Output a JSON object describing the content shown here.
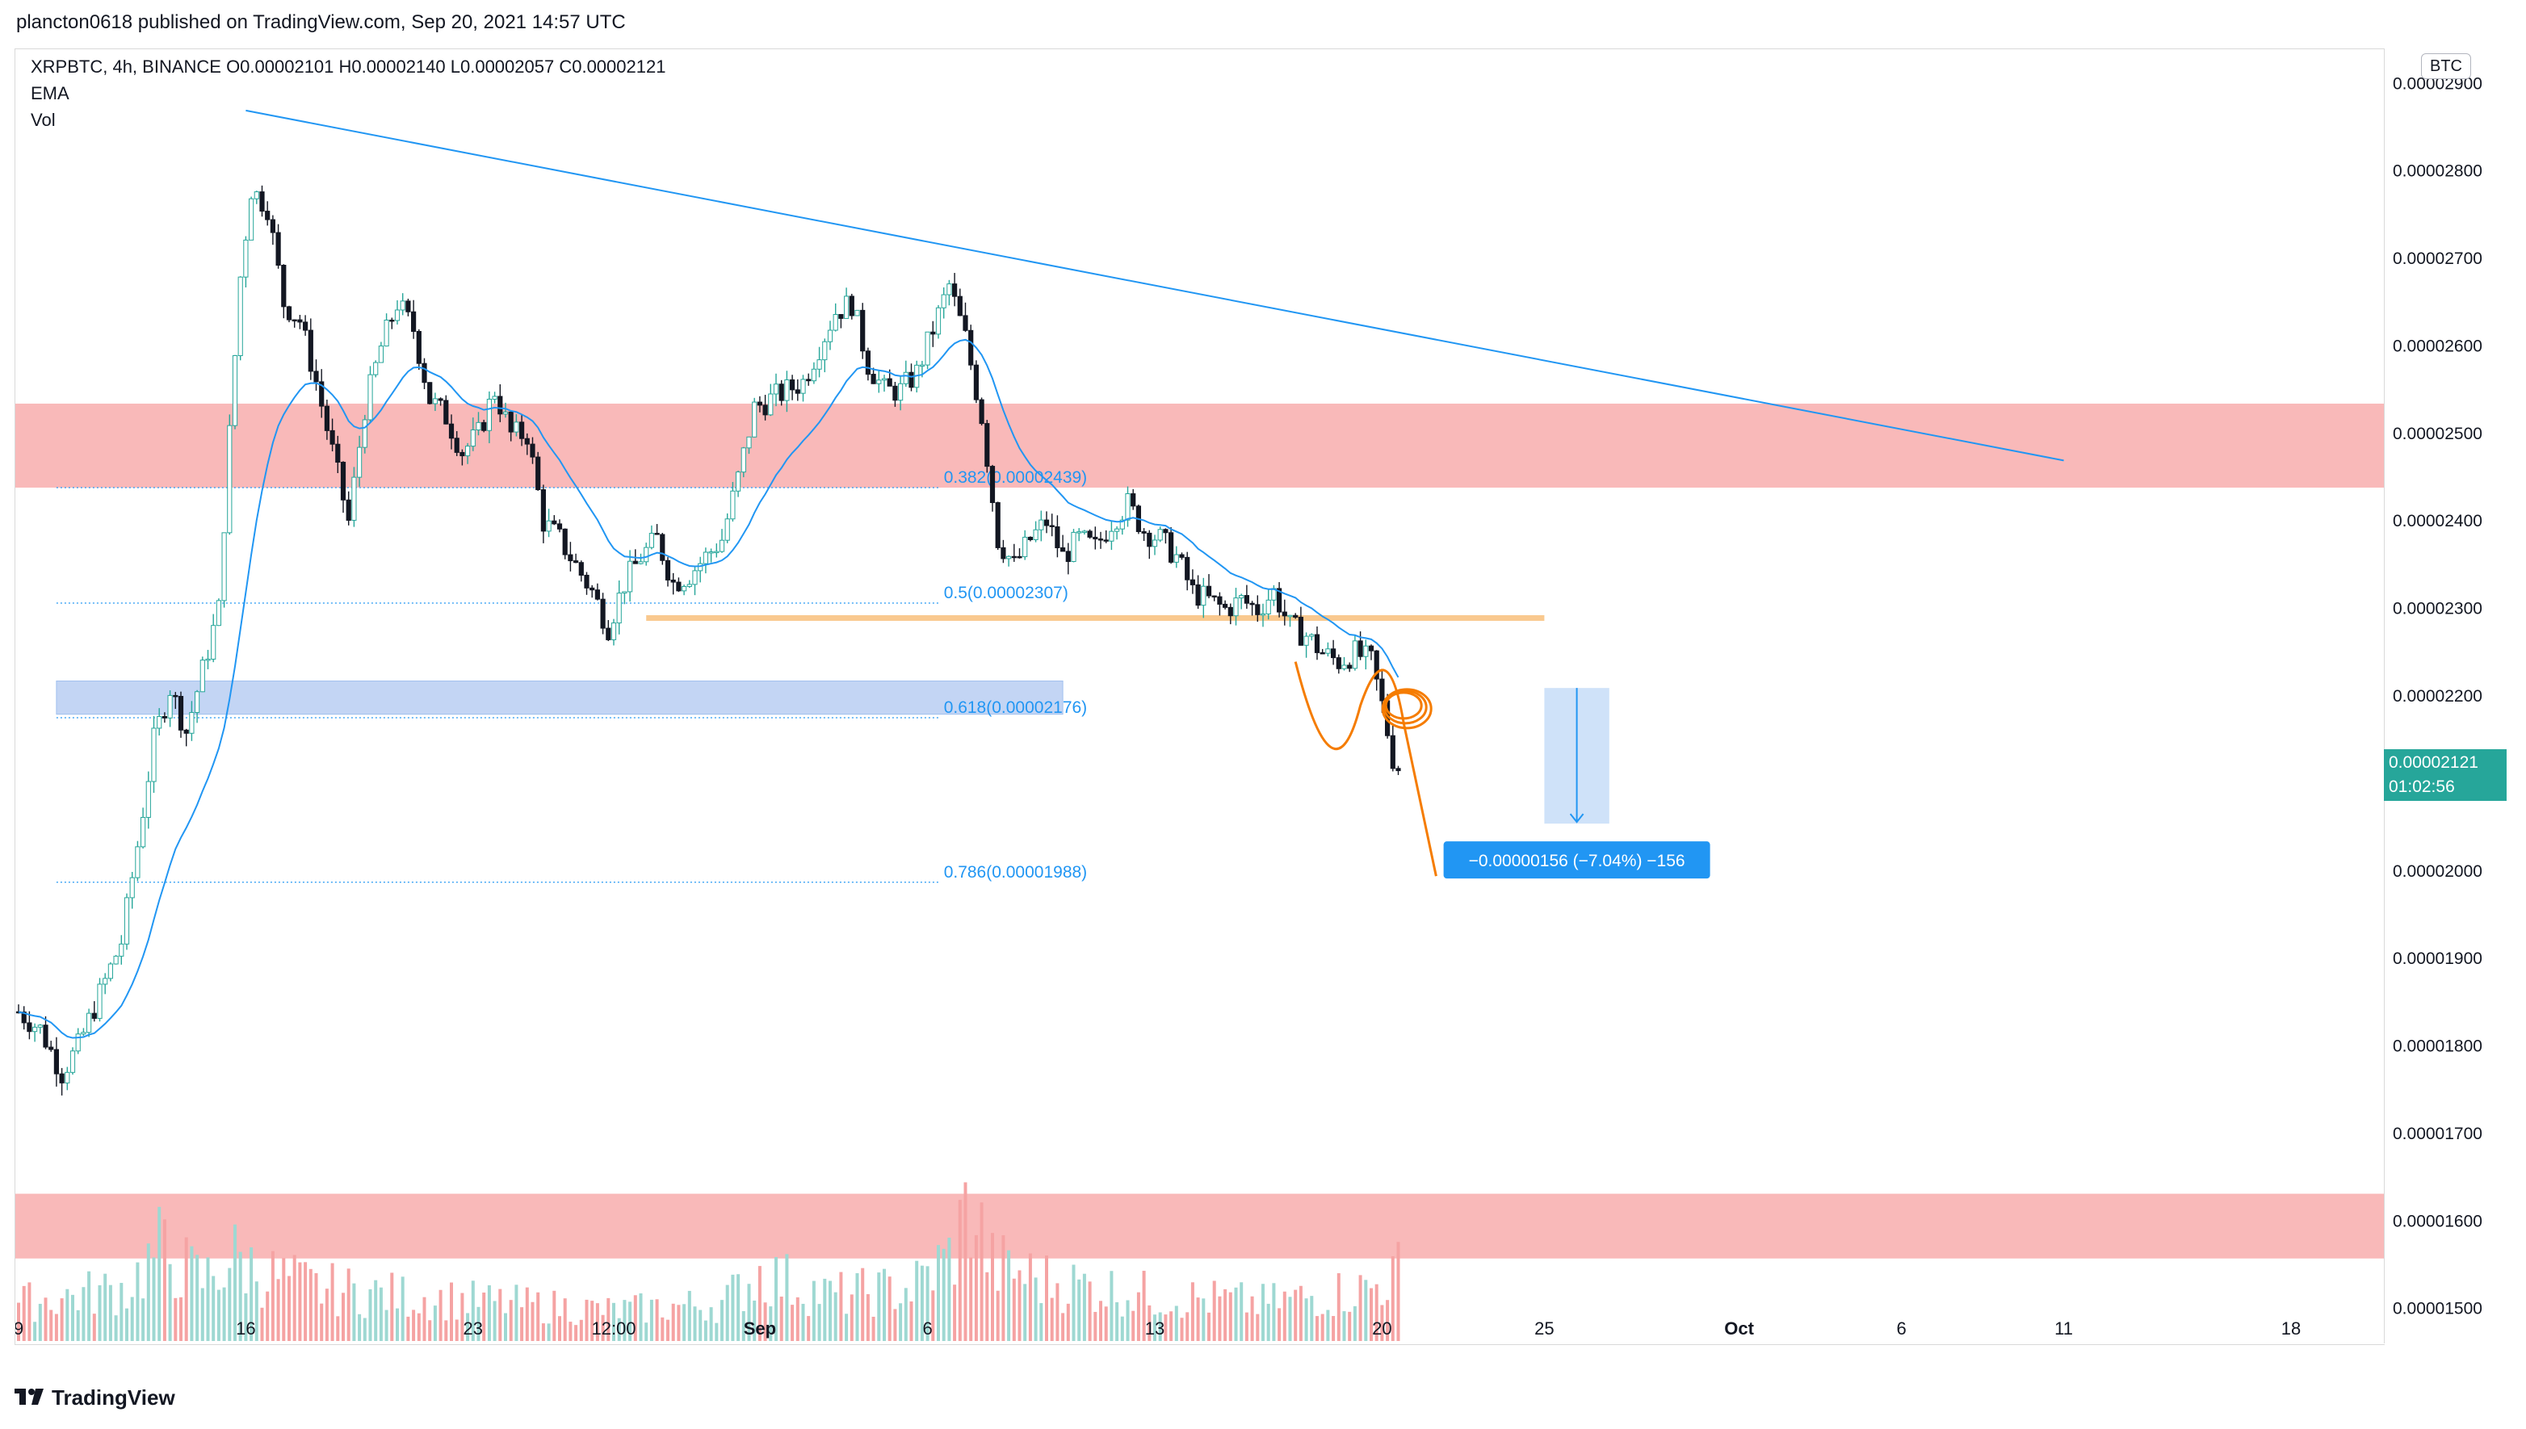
{
  "header": {
    "published_text": "plancton0618 published on TradingView.com, Sep 20, 2021 14:57 UTC"
  },
  "legend": {
    "symbol_line": "XRPBTC, 4h, BINANCE  O0.00002101  H0.00002140  L0.00002057  C0.00002121",
    "ema_label": "EMA",
    "vol_label": "Vol"
  },
  "axis": {
    "currency": "BTC",
    "last_price": "0.00002121",
    "countdown": "01:02:56"
  },
  "footer": {
    "brand": "TradingView"
  },
  "colors": {
    "up": "#26a69a",
    "down": "#131722",
    "ema": "#2196f3",
    "trendline": "#2196f3",
    "resistance_zone": "#f7a1a1",
    "support_zone": "#aac4f0",
    "fib_text": "#2196f3",
    "support_line": "#f9c98f",
    "drawing": "#f57c00",
    "measure_fill": "#bbd6f7",
    "measure_label": "#2196f3",
    "volume_up": "#9ed8d2",
    "volume_down": "#f5a3a3"
  },
  "chart_data": {
    "type": "candlestick",
    "symbol": "XRPBTC",
    "interval": "4h",
    "exchange": "BINANCE",
    "ylim": [
      1.46e-05,
      2.94e-05
    ],
    "y_ticks": [
      2.9e-05,
      2.8e-05,
      2.7e-05,
      2.6e-05,
      2.5e-05,
      2.4e-05,
      2.3e-05,
      2.2e-05,
      2.1e-05,
      2e-05,
      1.9e-05,
      1.8e-05,
      1.7e-05,
      1.6e-05,
      1.5e-05
    ],
    "y_tick_labels": [
      "0.00002900",
      "0.00002800",
      "0.00002700",
      "0.00002600",
      "0.00002500",
      "0.00002400",
      "0.00002300",
      "0.00002200",
      "0.00002100",
      "0.00002000",
      "0.00001900",
      "0.00001800",
      "0.00001700",
      "0.00001600",
      "0.00001500"
    ],
    "x_ticks": [
      {
        "label": "9",
        "bar": 0
      },
      {
        "label": "16",
        "bar": 42
      },
      {
        "label": "23",
        "bar": 84
      },
      {
        "label": "12:00",
        "bar": 110
      },
      {
        "label": "Sep",
        "bar": 137
      },
      {
        "label": "6",
        "bar": 168
      },
      {
        "label": "13",
        "bar": 210
      },
      {
        "label": "20",
        "bar": 252
      },
      {
        "label": "25",
        "bar": 282
      },
      {
        "label": "Oct",
        "bar": 318
      },
      {
        "label": "6",
        "bar": 348
      },
      {
        "label": "11",
        "bar": 378
      },
      {
        "label": "18",
        "bar": 420
      }
    ],
    "close_anchors": [
      [
        0,
        1.84e-05
      ],
      [
        4,
        1.82e-05
      ],
      [
        8,
        1.77e-05
      ],
      [
        11,
        1.8e-05
      ],
      [
        15,
        1.86e-05
      ],
      [
        19,
        1.92e-05
      ],
      [
        22,
        2.03e-05
      ],
      [
        25,
        2.15e-05
      ],
      [
        28,
        2.21e-05
      ],
      [
        31,
        2.16e-05
      ],
      [
        34,
        2.23e-05
      ],
      [
        37,
        2.3e-05
      ],
      [
        39,
        2.5e-05
      ],
      [
        41,
        2.68e-05
      ],
      [
        43,
        2.78e-05
      ],
      [
        46,
        2.76e-05
      ],
      [
        49,
        2.65e-05
      ],
      [
        52,
        2.63e-05
      ],
      [
        55,
        2.56e-05
      ],
      [
        58,
        2.48e-05
      ],
      [
        61,
        2.4e-05
      ],
      [
        64,
        2.53e-05
      ],
      [
        67,
        2.6e-05
      ],
      [
        70,
        2.65e-05
      ],
      [
        73,
        2.62e-05
      ],
      [
        76,
        2.54e-05
      ],
      [
        79,
        2.52e-05
      ],
      [
        82,
        2.48e-05
      ],
      [
        85,
        2.5e-05
      ],
      [
        88,
        2.55e-05
      ],
      [
        91,
        2.5e-05
      ],
      [
        94,
        2.5e-05
      ],
      [
        97,
        2.4e-05
      ],
      [
        100,
        2.38e-05
      ],
      [
        103,
        2.35e-05
      ],
      [
        106,
        2.32e-05
      ],
      [
        109,
        2.28e-05
      ],
      [
        112,
        2.33e-05
      ],
      [
        115,
        2.36e-05
      ],
      [
        118,
        2.38e-05
      ],
      [
        121,
        2.33e-05
      ],
      [
        124,
        2.34e-05
      ],
      [
        127,
        2.36e-05
      ],
      [
        130,
        2.38e-05
      ],
      [
        133,
        2.45e-05
      ],
      [
        136,
        2.53e-05
      ],
      [
        139,
        2.54e-05
      ],
      [
        142,
        2.55e-05
      ],
      [
        145,
        2.56e-05
      ],
      [
        148,
        2.6e-05
      ],
      [
        151,
        2.64e-05
      ],
      [
        154,
        2.65e-05
      ],
      [
        157,
        2.58e-05
      ],
      [
        160,
        2.55e-05
      ],
      [
        163,
        2.55e-05
      ],
      [
        166,
        2.57e-05
      ],
      [
        169,
        2.62e-05
      ],
      [
        172,
        2.67e-05
      ],
      [
        175,
        2.61e-05
      ],
      [
        178,
        2.52e-05
      ],
      [
        181,
        2.38e-05
      ],
      [
        184,
        2.35e-05
      ],
      [
        187,
        2.38e-05
      ],
      [
        190,
        2.4e-05
      ],
      [
        193,
        2.36e-05
      ],
      [
        196,
        2.38e-05
      ],
      [
        199,
        2.37e-05
      ],
      [
        202,
        2.4e-05
      ],
      [
        205,
        2.42e-05
      ],
      [
        208,
        2.39e-05
      ],
      [
        211,
        2.38e-05
      ],
      [
        214,
        2.36e-05
      ],
      [
        217,
        2.32e-05
      ],
      [
        220,
        2.31e-05
      ],
      [
        223,
        2.3e-05
      ],
      [
        226,
        2.31e-05
      ],
      [
        229,
        2.3e-05
      ],
      [
        232,
        2.32e-05
      ],
      [
        235,
        2.28e-05
      ],
      [
        238,
        2.27e-05
      ],
      [
        241,
        2.25e-05
      ],
      [
        244,
        2.24e-05
      ],
      [
        247,
        2.25e-05
      ],
      [
        250,
        2.24e-05
      ],
      [
        252,
        2.19e-05
      ],
      [
        254,
        2.13e-05
      ],
      [
        255,
        2.12e-05
      ]
    ],
    "volume_profile": [
      [
        0,
        0.25
      ],
      [
        20,
        0.35
      ],
      [
        26,
        0.6
      ],
      [
        30,
        0.5
      ],
      [
        34,
        0.4
      ],
      [
        40,
        0.55
      ],
      [
        45,
        0.45
      ],
      [
        55,
        0.35
      ],
      [
        70,
        0.3
      ],
      [
        90,
        0.25
      ],
      [
        110,
        0.2
      ],
      [
        130,
        0.25
      ],
      [
        137,
        0.45
      ],
      [
        150,
        0.3
      ],
      [
        165,
        0.35
      ],
      [
        172,
        0.55
      ],
      [
        176,
        0.9
      ],
      [
        180,
        0.5
      ],
      [
        190,
        0.4
      ],
      [
        210,
        0.3
      ],
      [
        230,
        0.25
      ],
      [
        250,
        0.35
      ],
      [
        255,
        0.45
      ]
    ],
    "series": [
      {
        "name": "EMA"
      },
      {
        "name": "Vol"
      }
    ],
    "ohlc_last": {
      "open": 2.101e-05,
      "high": 2.14e-05,
      "low": 2.057e-05,
      "close": 2.121e-05
    },
    "zones": [
      {
        "kind": "resistance",
        "from": 2.439e-05,
        "to": 2.535e-05
      },
      {
        "kind": "support",
        "from": 2.18e-05,
        "to": 2.218e-05
      },
      {
        "kind": "volume-area",
        "from": 1.558e-05,
        "to": 1.632e-05
      }
    ],
    "fibonacci": [
      {
        "level": "0.382",
        "price": 2.439e-05,
        "label": "0.382(0.00002439)"
      },
      {
        "level": "0.5",
        "price": 2.307e-05,
        "label": "0.5(0.00002307)"
      },
      {
        "level": "0.618",
        "price": 2.176e-05,
        "label": "0.618(0.00002176)"
      },
      {
        "level": "0.786",
        "price": 1.988e-05,
        "label": "0.786(0.00001988)"
      }
    ],
    "trendline": {
      "from": [
        42,
        2.87e-05
      ],
      "to": [
        378,
        2.47e-05
      ]
    },
    "support_line": {
      "from": [
        116,
        2.29e-05
      ],
      "to": [
        282,
        2.29e-05
      ]
    },
    "measure": {
      "from_bar": 282,
      "to_bar": 294,
      "from_price": 2.21e-05,
      "to_price": 2.055e-05,
      "label": "−0.00000156 (−7.04%) −156"
    },
    "ema_length": 20
  }
}
